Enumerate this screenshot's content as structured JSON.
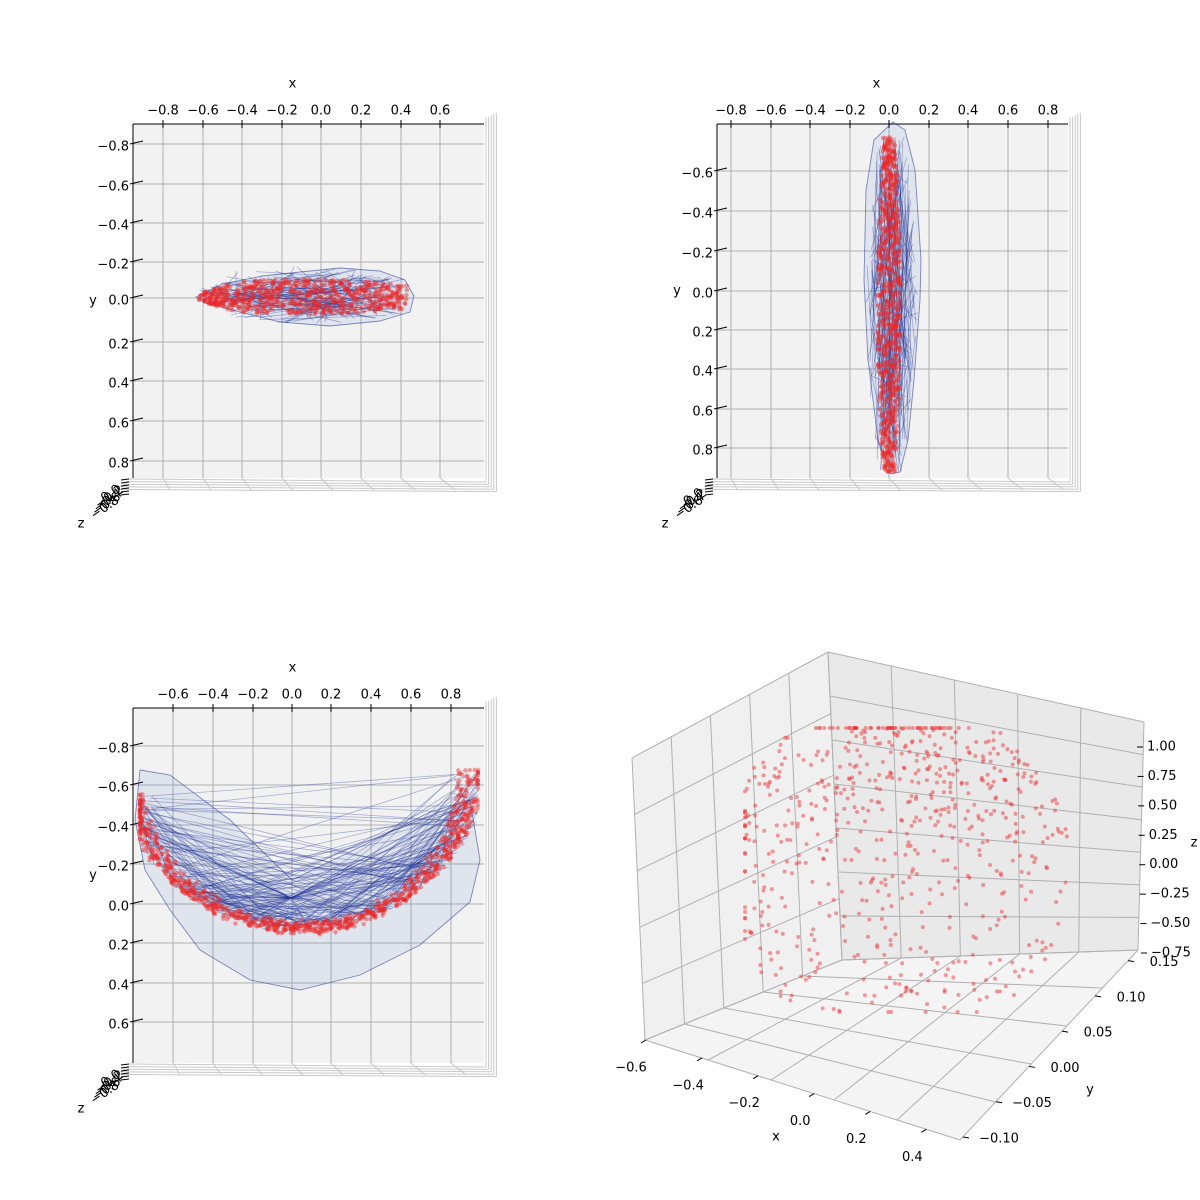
{
  "chart_data": [
    {
      "type": "scatter",
      "view": "top (x-y projection, view along z)",
      "xlabel": "x",
      "ylabel": "y",
      "zlabel": "z",
      "x_ticks": [
        "−0.8",
        "−0.6",
        "−0.4",
        "−0.2",
        "0.0",
        "0.2",
        "0.4",
        "0.6"
      ],
      "y_ticks": [
        "−0.8",
        "−0.6",
        "−0.4",
        "−0.2",
        "0.0",
        "0.2",
        "0.4",
        "0.6",
        "0.8"
      ],
      "z_ticks": [
        "−0.8",
        "−0.6",
        "−0.4",
        "−0.2",
        "0.0"
      ],
      "xlim": [
        -0.88,
        0.88
      ],
      "ylim": [
        -0.88,
        0.88
      ],
      "series": [
        {
          "kind": "points",
          "color": "#e82828"
        },
        {
          "kind": "convex-hull-mesh",
          "color": "#1e3296"
        }
      ],
      "shape": {
        "x_range": [
          -0.63,
          0.47
        ],
        "y_range": [
          -0.14,
          0.06
        ]
      },
      "grid": true
    },
    {
      "type": "scatter",
      "view": "top (x-y projection, view along z)",
      "xlabel": "x",
      "ylabel": "y",
      "zlabel": "z",
      "x_ticks": [
        "−0.8",
        "−0.6",
        "−0.4",
        "−0.2",
        "0.0",
        "0.2",
        "0.4",
        "0.6",
        "0.8"
      ],
      "y_ticks": [
        "−0.6",
        "−0.4",
        "−0.2",
        "0.0",
        "0.2",
        "0.4",
        "0.6",
        "0.8"
      ],
      "z_ticks": [
        "−0.6",
        "−0.4",
        "−0.2",
        "0.0"
      ],
      "xlim": [
        -0.88,
        0.88
      ],
      "ylim": [
        -0.72,
        0.98
      ],
      "series": [
        {
          "kind": "points",
          "color": "#e82828"
        },
        {
          "kind": "convex-hull-mesh",
          "color": "#1e3296"
        }
      ],
      "shape": {
        "x_range": [
          -0.13,
          0.15
        ],
        "y_range": [
          -0.79,
          0.95
        ]
      },
      "grid": true
    },
    {
      "type": "scatter",
      "view": "top (x-y projection, view along z)",
      "xlabel": "x",
      "ylabel": "y",
      "zlabel": "z",
      "x_ticks": [
        "−0.6",
        "−0.4",
        "−0.2",
        "0.0",
        "0.2",
        "0.4",
        "0.6",
        "0.8"
      ],
      "y_ticks": [
        "−0.8",
        "−0.6",
        "−0.4",
        "−0.2",
        "0.0",
        "0.2",
        "0.4",
        "0.6"
      ],
      "z_ticks": [
        "−0.8",
        "−0.6",
        "−0.4",
        "−0.2",
        "0.0"
      ],
      "xlim": [
        -0.8,
        0.98
      ],
      "ylim": [
        -0.92,
        0.82
      ],
      "series": [
        {
          "kind": "points",
          "color": "#e82828"
        },
        {
          "kind": "convex-hull-mesh",
          "color": "#1e3296"
        }
      ],
      "shape": {
        "x_range": [
          -0.8,
          0.96
        ],
        "y_range": [
          -0.66,
          0.47
        ]
      },
      "grid": true
    },
    {
      "type": "scatter",
      "view": "perspective 3D",
      "xlabel": "x",
      "ylabel": "y",
      "zlabel": "z",
      "x_ticks": [
        "−0.6",
        "−0.4",
        "−0.2",
        "0.0",
        "0.2",
        "0.4"
      ],
      "y_ticks": [
        "−0.10",
        "−0.05",
        "0.00",
        "0.05",
        "0.10",
        "0.15"
      ],
      "z_ticks": [
        "−0.75",
        "−0.50",
        "−0.25",
        "0.00",
        "0.25",
        "0.50",
        "0.75",
        "1.00"
      ],
      "xlim": [
        -0.65,
        0.45
      ],
      "ylim": [
        -0.12,
        0.17
      ],
      "zlim": [
        -0.85,
        1.05
      ],
      "series": [
        {
          "kind": "points",
          "color": "#e82828"
        }
      ],
      "grid": true
    }
  ]
}
